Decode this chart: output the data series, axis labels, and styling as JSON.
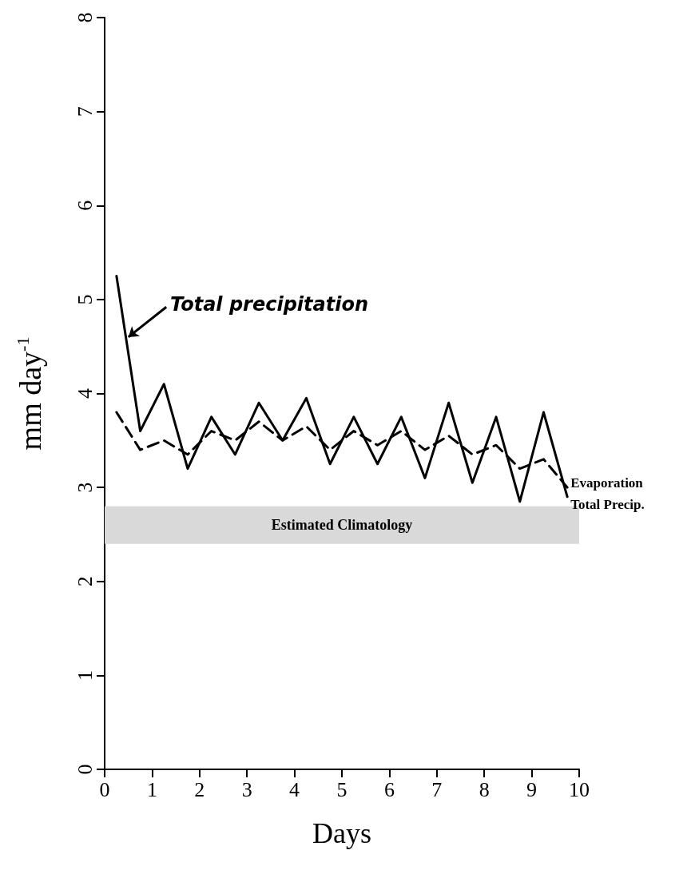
{
  "chart_data": {
    "type": "line",
    "xlabel": "Days",
    "ylabel": "mm day$^{-1}$",
    "x": [
      0.25,
      0.75,
      1.25,
      1.75,
      2.25,
      2.75,
      3.25,
      3.75,
      4.25,
      4.75,
      5.25,
      5.75,
      6.25,
      6.75,
      7.25,
      7.75,
      8.25,
      8.75,
      9.25,
      9.75
    ],
    "series": [
      {
        "name": "Evaporation",
        "color": "#000000",
        "line_style": "dashed",
        "values": [
          3.8,
          3.4,
          3.5,
          3.35,
          3.6,
          3.5,
          3.7,
          3.5,
          3.65,
          3.4,
          3.6,
          3.45,
          3.6,
          3.4,
          3.55,
          3.35,
          3.45,
          3.2,
          3.3,
          3.0
        ]
      },
      {
        "name": "Total Precip.",
        "color": "#000000",
        "line_style": "solid",
        "values": [
          5.25,
          3.6,
          4.1,
          3.2,
          3.75,
          3.35,
          3.9,
          3.5,
          3.95,
          3.25,
          3.75,
          3.25,
          3.75,
          3.1,
          3.9,
          3.05,
          3.75,
          2.85,
          3.8,
          2.9
        ]
      }
    ],
    "bands": [
      {
        "axis": "y",
        "from": 2.4,
        "to": 2.8,
        "label": "Estimated Climatology",
        "color": "#d9d9d9"
      }
    ],
    "annotations": [
      {
        "text": "Total precipitation",
        "x": 0.5,
        "y": 4.6
      }
    ],
    "xlim": [
      0,
      10
    ],
    "xticks": [
      0,
      1,
      2,
      3,
      4,
      5,
      6,
      7,
      8,
      9,
      10
    ],
    "ylim": [
      0,
      8
    ],
    "yticks": [
      0,
      1,
      2,
      3,
      4,
      5,
      6,
      7,
      8
    ],
    "grid": false,
    "legend": false,
    "marker": "none"
  }
}
